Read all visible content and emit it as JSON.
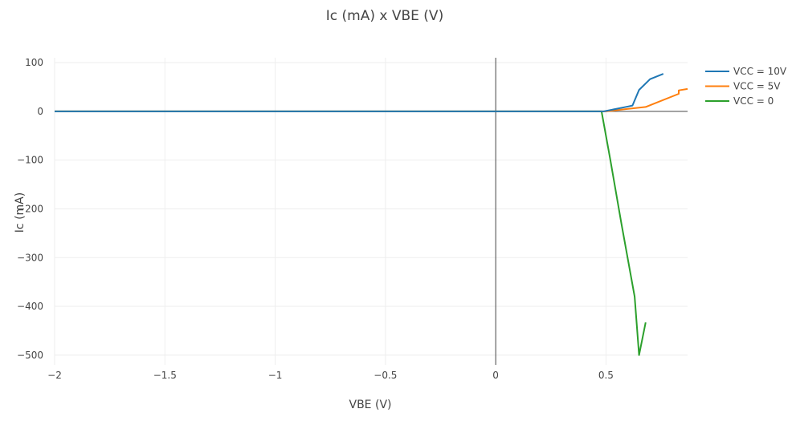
{
  "chart_data": {
    "type": "line",
    "title": "Ic (mA) x VBE (V)",
    "xlabel": "VBE (V)",
    "ylabel": "Ic (mA)",
    "xlim": [
      -2,
      0.87
    ],
    "ylim": [
      -520,
      110
    ],
    "xticks": [
      -2,
      -1.5,
      -1,
      -0.5,
      0,
      0.5
    ],
    "xtick_labels": [
      "−2",
      "−1.5",
      "−1",
      "−0.5",
      "0",
      "0.5"
    ],
    "yticks": [
      100,
      0,
      -100,
      -200,
      -300,
      -400,
      -500
    ],
    "ytick_labels": [
      "100",
      "0",
      "−100",
      "−200",
      "−300",
      "−400",
      "−500"
    ],
    "grid": true,
    "legend_position": "top-right",
    "series": [
      {
        "name": "VCC = 10V",
        "color": "#1f77b4",
        "x": [
          -2,
          0,
          0.49,
          0.6,
          0.62,
          0.65,
          0.7,
          0.76
        ],
        "y": [
          0,
          0,
          0,
          10,
          12,
          44,
          66,
          77
        ]
      },
      {
        "name": "VCC = 5V",
        "color": "#ff7f0e",
        "x": [
          -2,
          0,
          0.5,
          0.6,
          0.68,
          0.83,
          0.83,
          0.87
        ],
        "y": [
          0,
          0,
          0,
          5,
          9,
          36,
          43,
          46
        ]
      },
      {
        "name": "VCC = 0",
        "color": "#2ca02c",
        "x": [
          -2,
          0,
          0.48,
          0.52,
          0.57,
          0.63,
          0.65,
          0.68
        ],
        "y": [
          0,
          0,
          0,
          -100,
          -230,
          -380,
          -500,
          -433
        ]
      }
    ]
  }
}
